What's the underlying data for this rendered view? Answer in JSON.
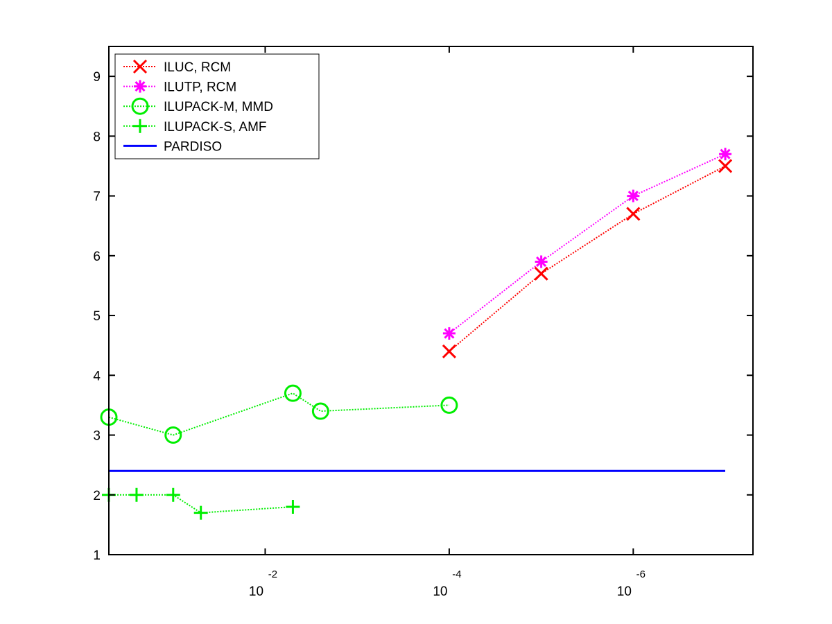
{
  "chart_data": {
    "type": "line",
    "title": "",
    "xlabel": "",
    "ylabel": "",
    "xscale": "log",
    "x_reversed": true,
    "xlim": [
      0.5,
      5e-08
    ],
    "ylim": [
      1,
      9.5
    ],
    "yticks": [
      1,
      2,
      3,
      4,
      5,
      6,
      7,
      8,
      9
    ],
    "xticks": [
      {
        "value": 0.01,
        "base": "10",
        "exponent": "-2"
      },
      {
        "value": 0.0001,
        "base": "10",
        "exponent": "-4"
      },
      {
        "value": 1e-06,
        "base": "10",
        "exponent": "-6"
      }
    ],
    "grid": false,
    "legend_position": "top-left",
    "series": [
      {
        "name": "ILUC, RCM",
        "color": "#ff0000",
        "marker": "x",
        "line": "dotted",
        "points": [
          [
            0.0001,
            4.4
          ],
          [
            1e-05,
            5.7
          ],
          [
            1e-06,
            6.7
          ],
          [
            1e-07,
            7.5
          ]
        ]
      },
      {
        "name": "ILUTP, RCM",
        "color": "#ff00ff",
        "marker": "star",
        "line": "dotted",
        "points": [
          [
            0.0001,
            4.7
          ],
          [
            1e-05,
            5.9
          ],
          [
            1e-06,
            7.0
          ],
          [
            1e-07,
            7.7
          ]
        ]
      },
      {
        "name": "ILUPACK-M, MMD",
        "color": "#00ee00",
        "marker": "circle",
        "line": "dotted",
        "points": [
          [
            0.5,
            3.3
          ],
          [
            0.1,
            3.0
          ],
          [
            0.005,
            3.7
          ],
          [
            0.0025,
            3.4
          ],
          [
            0.0001,
            3.5
          ]
        ]
      },
      {
        "name": "ILUPACK-S, AMF",
        "color": "#00ee00",
        "marker": "plus",
        "line": "dotted",
        "points": [
          [
            0.5,
            2.0
          ],
          [
            0.25,
            2.0
          ],
          [
            0.1,
            2.0
          ],
          [
            0.05,
            1.7
          ],
          [
            0.005,
            1.8
          ]
        ]
      },
      {
        "name": "PARDISO",
        "color": "#0000ff",
        "marker": "none",
        "line": "solid",
        "points": [
          [
            0.5,
            2.4
          ],
          [
            1e-07,
            2.4
          ]
        ]
      }
    ]
  }
}
